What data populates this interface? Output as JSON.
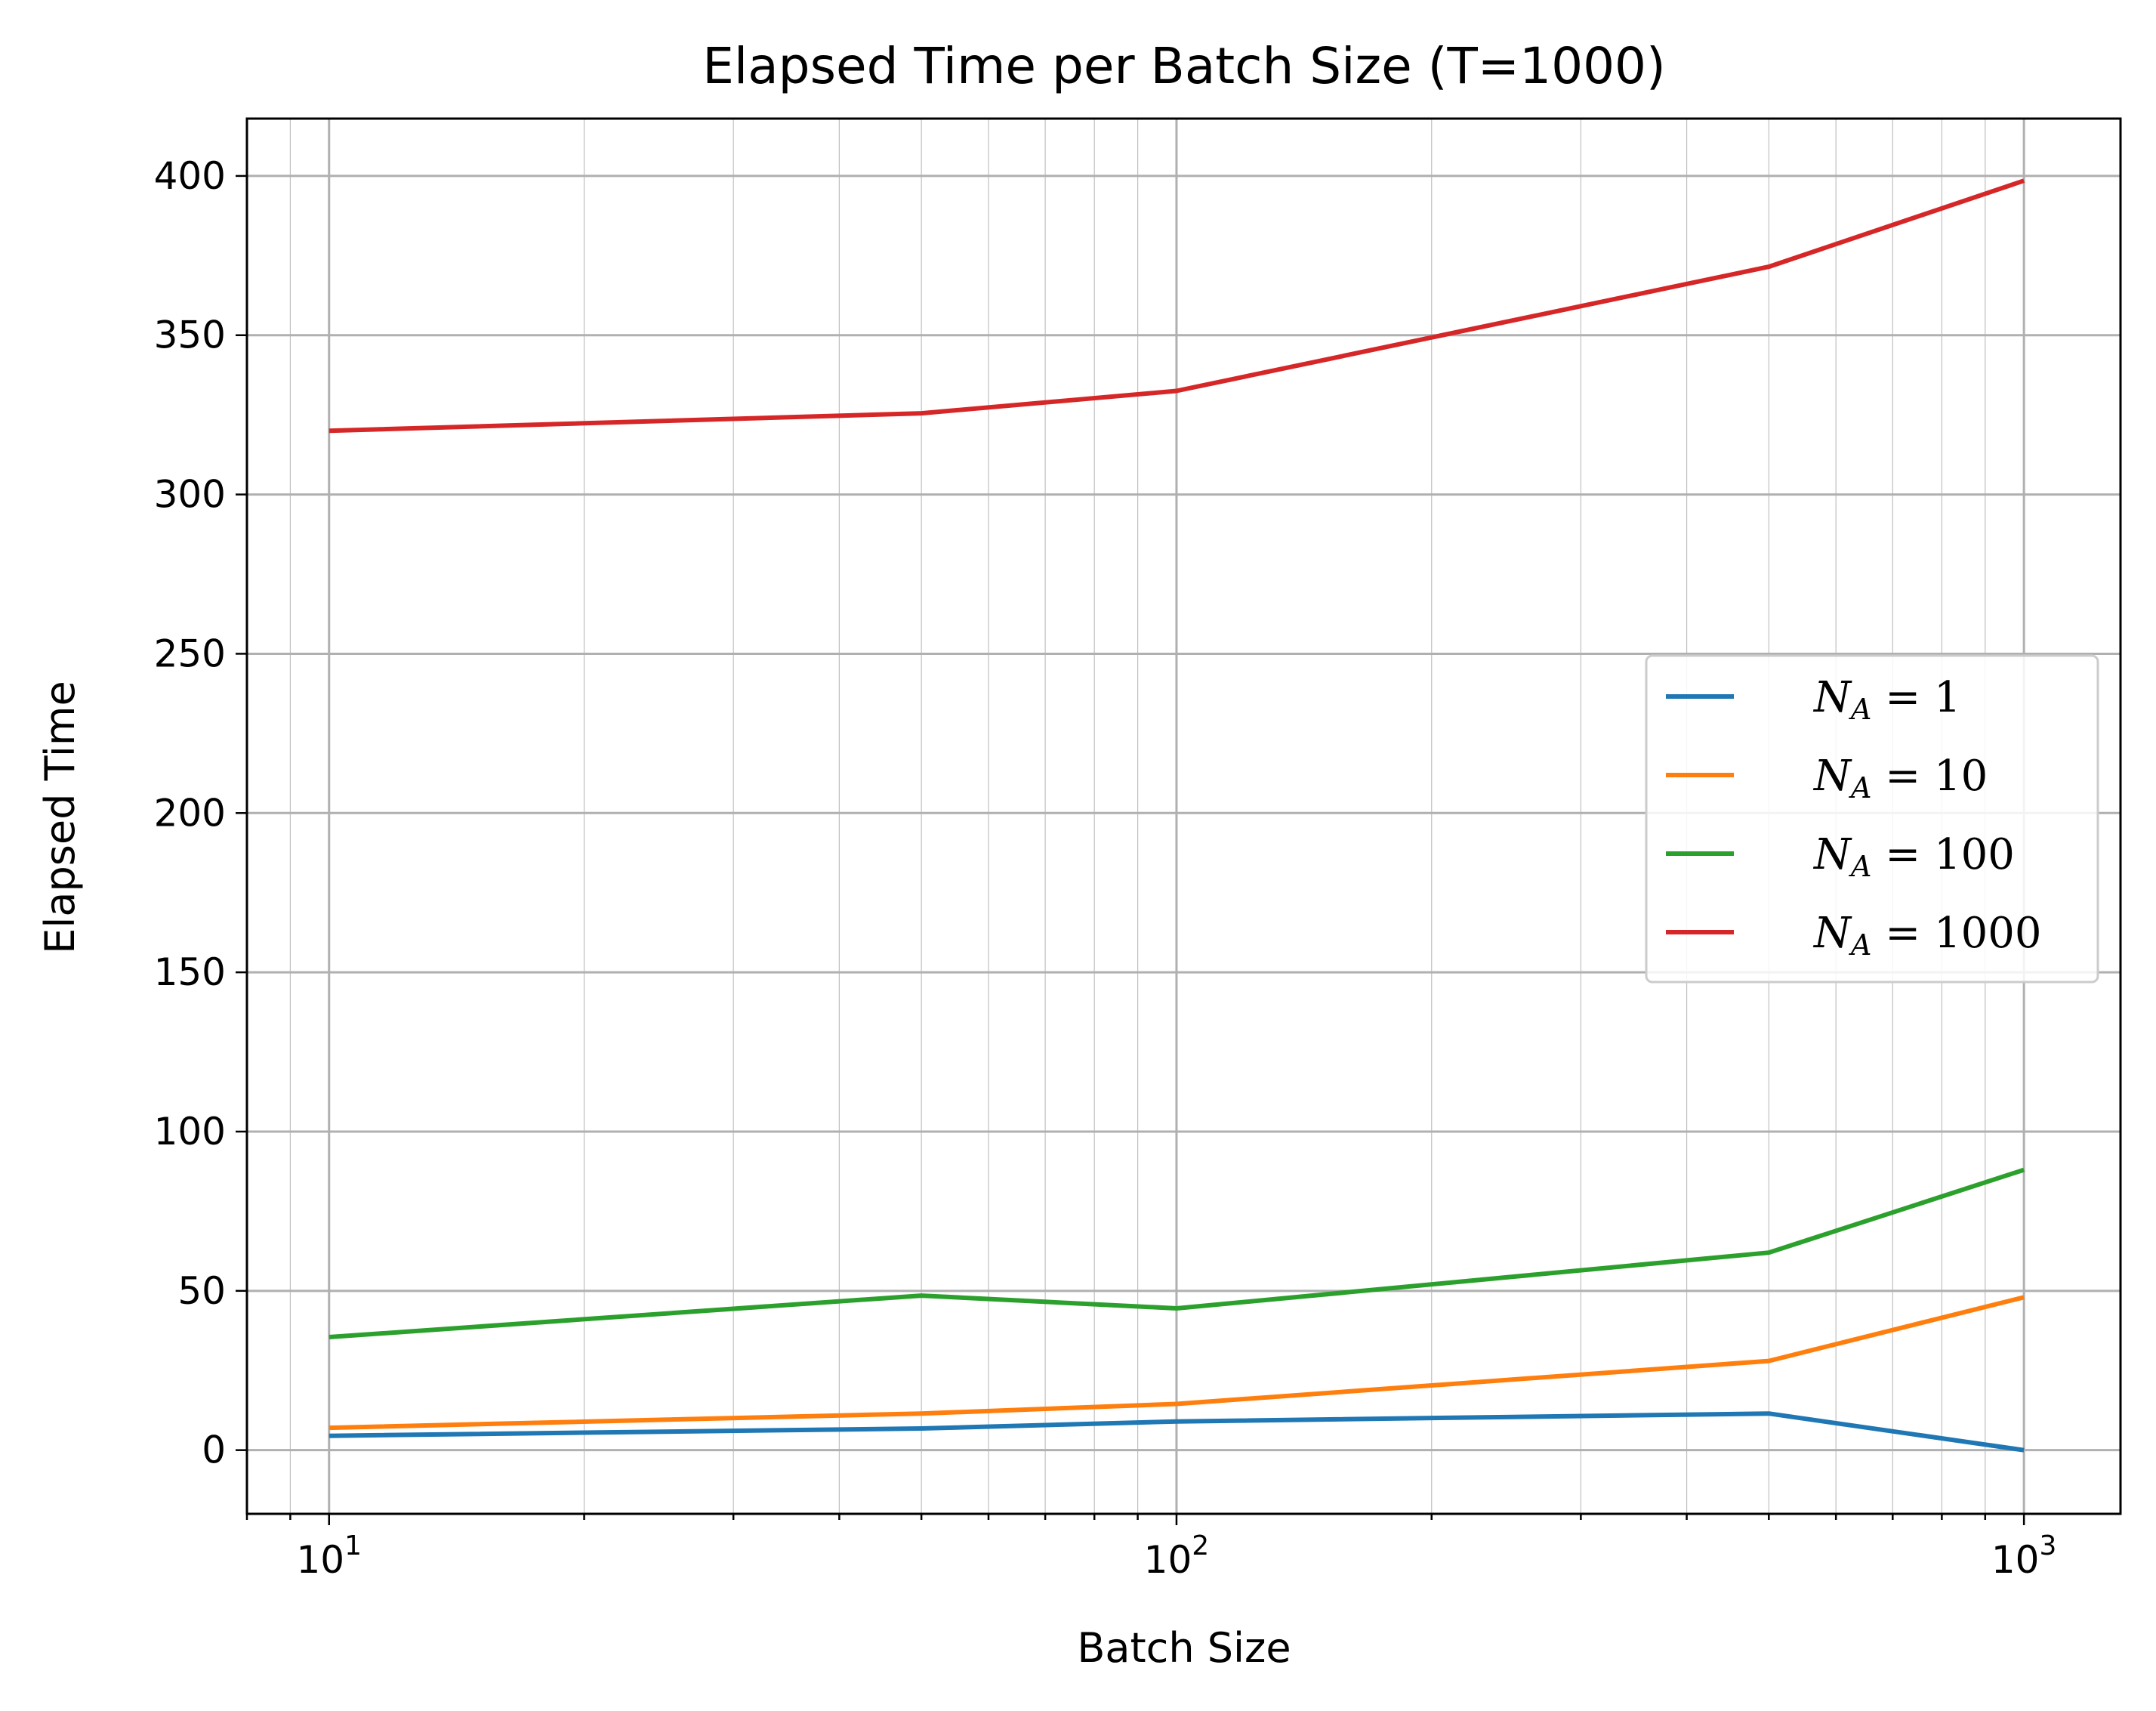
{
  "chart_data": {
    "type": "line",
    "title": "Elapsed Time per Batch Size (T=1000)",
    "xlabel": "Batch Size",
    "ylabel": "Elapsed Time",
    "xscale": "log",
    "xlim": [
      8,
      1300
    ],
    "ylim": [
      -20,
      418
    ],
    "x": [
      10,
      50,
      100,
      500,
      1000
    ],
    "xticks": [
      {
        "value": 10,
        "base": "10",
        "exp": "1"
      },
      {
        "value": 100,
        "base": "10",
        "exp": "2"
      },
      {
        "value": 1000,
        "base": "10",
        "exp": "3"
      }
    ],
    "yticks": [
      0,
      50,
      100,
      150,
      200,
      250,
      300,
      350,
      400
    ],
    "grid": "both",
    "legend_position": "center-right",
    "series": [
      {
        "name": "N",
        "sub": "A",
        "label_eq": " = 1",
        "color": "#1f77b4",
        "values": [
          4.5,
          6.8,
          9,
          11.5,
          0
        ]
      },
      {
        "name": "N",
        "sub": "A",
        "label_eq": " = 10",
        "color": "#ff7f0e",
        "values": [
          7,
          11.5,
          14.5,
          28,
          48
        ]
      },
      {
        "name": "N",
        "sub": "A",
        "label_eq": " = 100",
        "color": "#2ca02c",
        "values": [
          35.5,
          48.5,
          44.5,
          62,
          88
        ]
      },
      {
        "name": "N",
        "sub": "A",
        "label_eq": " = 1000",
        "color": "#d62728",
        "values": [
          320,
          325.5,
          332.5,
          371.5,
          398.5
        ]
      }
    ]
  }
}
